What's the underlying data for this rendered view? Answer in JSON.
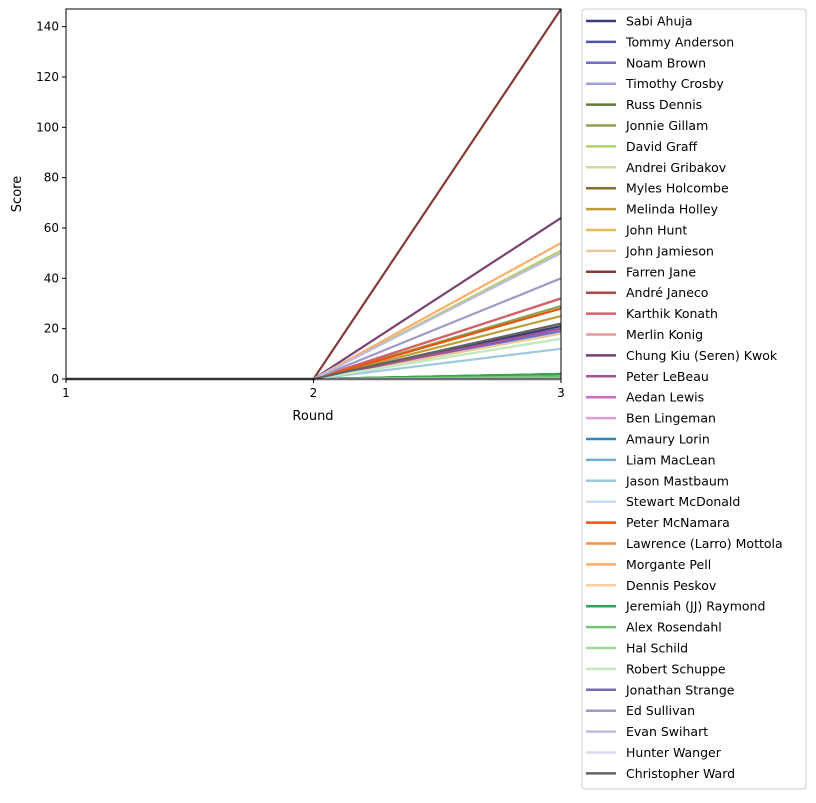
{
  "chart_data": {
    "type": "line",
    "title": "",
    "xlabel": "Round",
    "ylabel": "Score",
    "x": [
      1,
      2,
      3
    ],
    "xlim": [
      1,
      3
    ],
    "ylim": [
      0,
      147
    ],
    "xticks": [
      1,
      2,
      3
    ],
    "yticks": [
      0,
      20,
      40,
      60,
      80,
      100,
      120,
      140
    ],
    "grid": false,
    "legend_placement": "outside-right",
    "series": [
      {
        "name": "Sabi Ahuja",
        "color": "#393b79",
        "values": [
          0,
          0,
          21
        ]
      },
      {
        "name": "Tommy Anderson",
        "color": "#5254a3",
        "values": [
          0,
          0,
          20
        ]
      },
      {
        "name": "Noam Brown",
        "color": "#6b6ecf",
        "values": [
          0,
          0,
          19
        ]
      },
      {
        "name": "Timothy Crosby",
        "color": "#9c9ede",
        "values": [
          0,
          0,
          0
        ]
      },
      {
        "name": "Russ Dennis",
        "color": "#637939",
        "values": [
          0,
          0,
          2
        ]
      },
      {
        "name": "Jonnie Gillam",
        "color": "#8ca252",
        "values": [
          0,
          0,
          29
        ]
      },
      {
        "name": "David Graff",
        "color": "#b5cf6b",
        "values": [
          0,
          0,
          51
        ]
      },
      {
        "name": "Andrei Gribakov",
        "color": "#cedb9c",
        "values": [
          0,
          0,
          1
        ]
      },
      {
        "name": "Myles Holcombe",
        "color": "#8c6d31",
        "values": [
          0,
          0,
          2
        ]
      },
      {
        "name": "Melinda Holley",
        "color": "#bd9e39",
        "values": [
          0,
          0,
          25
        ]
      },
      {
        "name": "John Hunt",
        "color": "#e7ba52",
        "values": [
          0,
          0,
          1
        ]
      },
      {
        "name": "John Jamieson",
        "color": "#e7cb94",
        "values": [
          0,
          0,
          18
        ]
      },
      {
        "name": "Farren Jane",
        "color": "#843c39",
        "values": [
          0,
          0,
          147
        ]
      },
      {
        "name": "André Janeco",
        "color": "#ad494a",
        "values": [
          0,
          0,
          32
        ]
      },
      {
        "name": "Karthik Konath",
        "color": "#d6616b",
        "values": [
          0,
          0,
          32
        ]
      },
      {
        "name": "Merlin Konig",
        "color": "#e7969c",
        "values": [
          0,
          0,
          1
        ]
      },
      {
        "name": "Chung Kiu (Seren) Kwok",
        "color": "#7b4173",
        "values": [
          0,
          0,
          64
        ]
      },
      {
        "name": "Peter LeBeau",
        "color": "#a55194",
        "values": [
          0,
          0,
          20
        ]
      },
      {
        "name": "Aedan Lewis",
        "color": "#ce6dbd",
        "values": [
          0,
          0,
          0
        ]
      },
      {
        "name": "Ben Lingeman",
        "color": "#de9ed6",
        "values": [
          0,
          0,
          0
        ]
      },
      {
        "name": "Amaury Lorin",
        "color": "#3182bd",
        "values": [
          0,
          0,
          0
        ]
      },
      {
        "name": "Liam MacLean",
        "color": "#6baed6",
        "values": [
          0,
          0,
          0
        ]
      },
      {
        "name": "Jason Mastbaum",
        "color": "#9ecae1",
        "values": [
          0,
          0,
          12
        ]
      },
      {
        "name": "Stewart McDonald",
        "color": "#c6dbef",
        "values": [
          0,
          0,
          0
        ]
      },
      {
        "name": "Peter McNamara",
        "color": "#e6550d",
        "values": [
          0,
          0,
          28
        ]
      },
      {
        "name": "Lawrence (Larro) Mottola",
        "color": "#fd8d3c",
        "values": [
          0,
          0,
          0
        ]
      },
      {
        "name": "Morgante Pell",
        "color": "#fdae6b",
        "values": [
          0,
          0,
          54
        ]
      },
      {
        "name": "Dennis Peskov",
        "color": "#fdd0a2",
        "values": [
          0,
          0,
          0
        ]
      },
      {
        "name": "Jeremiah (JJ) Raymond",
        "color": "#31a354",
        "values": [
          0,
          0,
          2
        ]
      },
      {
        "name": "Alex Rosendahl",
        "color": "#74c476",
        "values": [
          0,
          0,
          1
        ]
      },
      {
        "name": "Hal Schild",
        "color": "#a1d99b",
        "values": [
          0,
          0,
          16
        ]
      },
      {
        "name": "Robert Schuppe",
        "color": "#c7e9c0",
        "values": [
          0,
          0,
          16
        ]
      },
      {
        "name": "Jonathan Strange",
        "color": "#756bb1",
        "values": [
          0,
          0,
          0
        ]
      },
      {
        "name": "Ed Sullivan",
        "color": "#9e9ac8",
        "values": [
          0,
          0,
          40
        ]
      },
      {
        "name": "Evan Swihart",
        "color": "#bcbddc",
        "values": [
          0,
          0,
          50
        ]
      },
      {
        "name": "Hunter Wanger",
        "color": "#dadaeb",
        "values": [
          0,
          0,
          0
        ]
      },
      {
        "name": "Christopher Ward",
        "color": "#636363",
        "values": [
          0,
          0,
          22
        ]
      }
    ]
  }
}
